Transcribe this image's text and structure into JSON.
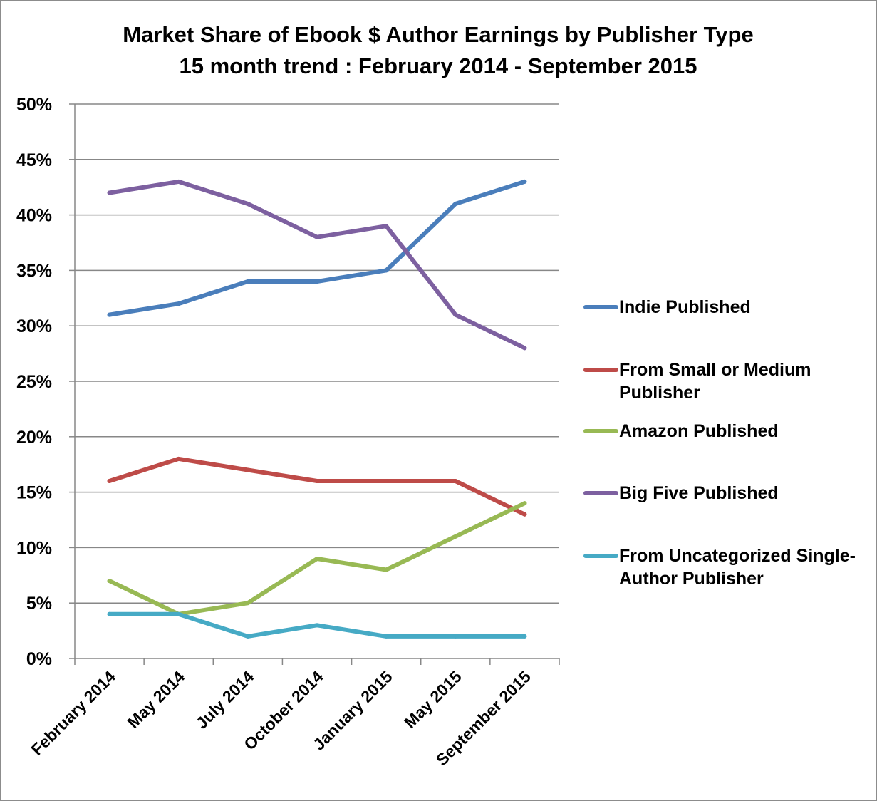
{
  "chart_data": {
    "type": "line",
    "title": "Market Share of Ebook $ Author Earnings by Publisher Type",
    "subtitle": "15 month trend : February 2014 - September 2015",
    "categories": [
      "February 2014",
      "May 2014",
      "July 2014",
      "October 2014",
      "January 2015",
      "May 2015",
      "September 2015"
    ],
    "yticks": [
      "0%",
      "5%",
      "10%",
      "15%",
      "20%",
      "25%",
      "30%",
      "35%",
      "40%",
      "45%",
      "50%"
    ],
    "ylim": [
      0,
      50
    ],
    "grid": true,
    "legend_position": "right",
    "series": [
      {
        "name": "Indie Published",
        "color": "#4a7ebb",
        "values": [
          31,
          32,
          34,
          34,
          35,
          41,
          43
        ],
        "legend_lines": [
          "Indie Published"
        ]
      },
      {
        "name": "From Small or Medium Publisher",
        "color": "#be4b48",
        "values": [
          16,
          18,
          17,
          16,
          16,
          16,
          13
        ],
        "legend_lines": [
          "From Small or Medium",
          "Publisher"
        ]
      },
      {
        "name": "Amazon Published",
        "color": "#98b954",
        "values": [
          7,
          4,
          5,
          9,
          8,
          11,
          14
        ],
        "legend_lines": [
          "Amazon Published"
        ]
      },
      {
        "name": "Big Five Published",
        "color": "#7d60a0",
        "values": [
          42,
          43,
          41,
          38,
          39,
          31,
          28
        ],
        "legend_lines": [
          "Big Five Published"
        ]
      },
      {
        "name": "From Uncategorized Single-Author Publisher",
        "color": "#46aac5",
        "values": [
          4,
          4,
          2,
          3,
          2,
          2,
          2
        ],
        "legend_lines": [
          "From Uncategorized Single-",
          "Author Publisher"
        ]
      }
    ]
  }
}
